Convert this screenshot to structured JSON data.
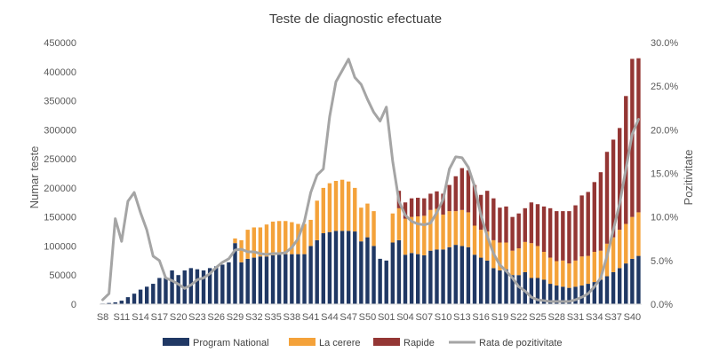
{
  "chart_data": {
    "type": "bar+line",
    "title": "Teste de diagnostic efectuate",
    "ylabel_left": "Numar teste",
    "ylabel_right": "Pozitivitate",
    "ylim_left": [
      0,
      450000
    ],
    "ylim_right": [
      0,
      30
    ],
    "y_ticks_left": [
      "0",
      "50000",
      "100000",
      "150000",
      "200000",
      "250000",
      "300000",
      "350000",
      "400000",
      "450000"
    ],
    "y_ticks_right": [
      "0.0%",
      "5.0%",
      "10.0%",
      "15.0%",
      "20.0%",
      "25.0%",
      "30.0%"
    ],
    "bar_mode": "stacked",
    "grid": false,
    "legend_position": "bottom",
    "categories": [
      "S8",
      "S9",
      "S10",
      "S11",
      "S12",
      "S13",
      "S14",
      "S15",
      "S16",
      "S17",
      "S18",
      "S19",
      "S20",
      "S21",
      "S22",
      "S23",
      "S24",
      "S25",
      "S26",
      "S27",
      "S28",
      "S29",
      "S30",
      "S31",
      "S32",
      "S33",
      "S34",
      "S35",
      "S36",
      "S37",
      "S38",
      "S39",
      "S40",
      "S41",
      "S42",
      "S43",
      "S44",
      "S45",
      "S46",
      "S47",
      "S48",
      "S49",
      "S50",
      "S51",
      "S52",
      "S53",
      "S01",
      "S02",
      "S03",
      "S04",
      "S05",
      "S06",
      "S07",
      "S08",
      "S09",
      "S10",
      "S11",
      "S12",
      "S13",
      "S14",
      "S15",
      "S16",
      "S17",
      "S18",
      "S19",
      "S20",
      "S21",
      "S22",
      "S23",
      "S24",
      "S25",
      "S26",
      "S27",
      "S28",
      "S29",
      "S30",
      "S31",
      "S32",
      "S33",
      "S34",
      "S35",
      "S36",
      "S37",
      "S38",
      "S39",
      "S40"
    ],
    "x_labels": [
      "S8",
      "S11",
      "S14",
      "S17",
      "S20",
      "S23",
      "S26",
      "S29",
      "S32",
      "S35",
      "S38",
      "S41",
      "S44",
      "S47",
      "S50",
      "S01",
      "S04",
      "S07",
      "S10",
      "S13",
      "S16",
      "S19",
      "S22",
      "S25",
      "S28",
      "S31",
      "S34",
      "S37",
      "S40"
    ],
    "series": [
      {
        "name": "Program National",
        "type": "bar",
        "color": "#203864",
        "values": [
          1000,
          2000,
          3000,
          6000,
          12000,
          18000,
          25000,
          30000,
          35000,
          45000,
          45000,
          58000,
          50000,
          58000,
          62000,
          60000,
          58000,
          62000,
          65000,
          68000,
          72000,
          105000,
          72000,
          78000,
          80000,
          82000,
          82000,
          84000,
          85000,
          86000,
          86000,
          86000,
          86000,
          100000,
          110000,
          122000,
          124000,
          126000,
          126000,
          126000,
          125000,
          108000,
          115000,
          100000,
          78000,
          75000,
          106000,
          110000,
          85000,
          88000,
          86000,
          84000,
          92000,
          94000,
          94000,
          98000,
          102000,
          100000,
          98000,
          85000,
          80000,
          75000,
          62000,
          58000,
          60000,
          50000,
          50000,
          55000,
          45000,
          45000,
          42000,
          35000,
          32000,
          30000,
          28000,
          30000,
          32000,
          35000,
          38000,
          42000,
          48000,
          55000,
          62000,
          70000,
          78000,
          83000
        ]
      },
      {
        "name": "La cerere",
        "type": "bar",
        "color": "#F4A23A",
        "values": [
          0,
          0,
          0,
          0,
          0,
          0,
          0,
          0,
          0,
          0,
          0,
          0,
          0,
          0,
          0,
          0,
          0,
          0,
          0,
          0,
          0,
          8000,
          38000,
          50000,
          52000,
          50000,
          55000,
          58000,
          58000,
          57000,
          55000,
          52000,
          52000,
          45000,
          68000,
          78000,
          84000,
          86000,
          88000,
          85000,
          75000,
          58000,
          58000,
          60000,
          0,
          0,
          50000,
          55000,
          62000,
          62000,
          65000,
          68000,
          70000,
          70000,
          60000,
          62000,
          58000,
          62000,
          60000,
          50000,
          48000,
          50000,
          48000,
          48000,
          46000,
          42000,
          46000,
          52000,
          60000,
          55000,
          48000,
          45000,
          42000,
          45000,
          42000,
          45000,
          50000,
          48000,
          52000,
          50000,
          56000,
          60000,
          66000,
          68000,
          72000,
          75000
        ]
      },
      {
        "name": "Rapide",
        "type": "bar",
        "color": "#943634",
        "values": [
          0,
          0,
          0,
          0,
          0,
          0,
          0,
          0,
          0,
          0,
          0,
          0,
          0,
          0,
          0,
          0,
          0,
          0,
          0,
          0,
          0,
          0,
          0,
          0,
          0,
          0,
          0,
          0,
          0,
          0,
          0,
          0,
          0,
          0,
          0,
          0,
          0,
          0,
          0,
          0,
          0,
          0,
          0,
          0,
          0,
          0,
          0,
          30000,
          28000,
          32000,
          32000,
          30000,
          28000,
          30000,
          36000,
          45000,
          60000,
          72000,
          72000,
          70000,
          60000,
          70000,
          72000,
          60000,
          62000,
          58000,
          60000,
          58000,
          70000,
          72000,
          78000,
          85000,
          86000,
          85000,
          90000,
          95000,
          105000,
          110000,
          120000,
          135000,
          158000,
          168000,
          175000,
          220000,
          272000,
          265000
        ]
      },
      {
        "name": "Rata de pozitivitate",
        "type": "line",
        "axis": "right",
        "color": "#A5A5A5",
        "values": [
          0.5,
          1.2,
          9.8,
          7.2,
          11.8,
          12.8,
          10.5,
          8.5,
          5.5,
          5.0,
          3.0,
          2.7,
          2.3,
          1.8,
          2.2,
          2.8,
          3.0,
          3.5,
          4.2,
          4.8,
          5.2,
          6.2,
          6.3,
          6.0,
          6.0,
          5.8,
          5.7,
          5.8,
          5.8,
          5.9,
          6.5,
          7.5,
          9.5,
          12.8,
          14.8,
          15.5,
          21.5,
          25.5,
          26.8,
          28.1,
          26.0,
          25.2,
          23.5,
          22.0,
          21.0,
          22.6,
          16.4,
          11.8,
          10.2,
          9.5,
          9.2,
          9.1,
          9.3,
          10.5,
          12.0,
          15.5,
          16.9,
          16.8,
          15.7,
          13.5,
          10.2,
          7.8,
          5.8,
          4.5,
          3.8,
          3.0,
          2.0,
          1.5,
          0.8,
          0.5,
          0.4,
          0.3,
          0.3,
          0.3,
          0.3,
          0.5,
          0.8,
          1.2,
          2.0,
          3.0,
          5.5,
          8.5,
          11.5,
          15.5,
          19.5,
          21.2
        ]
      }
    ]
  }
}
